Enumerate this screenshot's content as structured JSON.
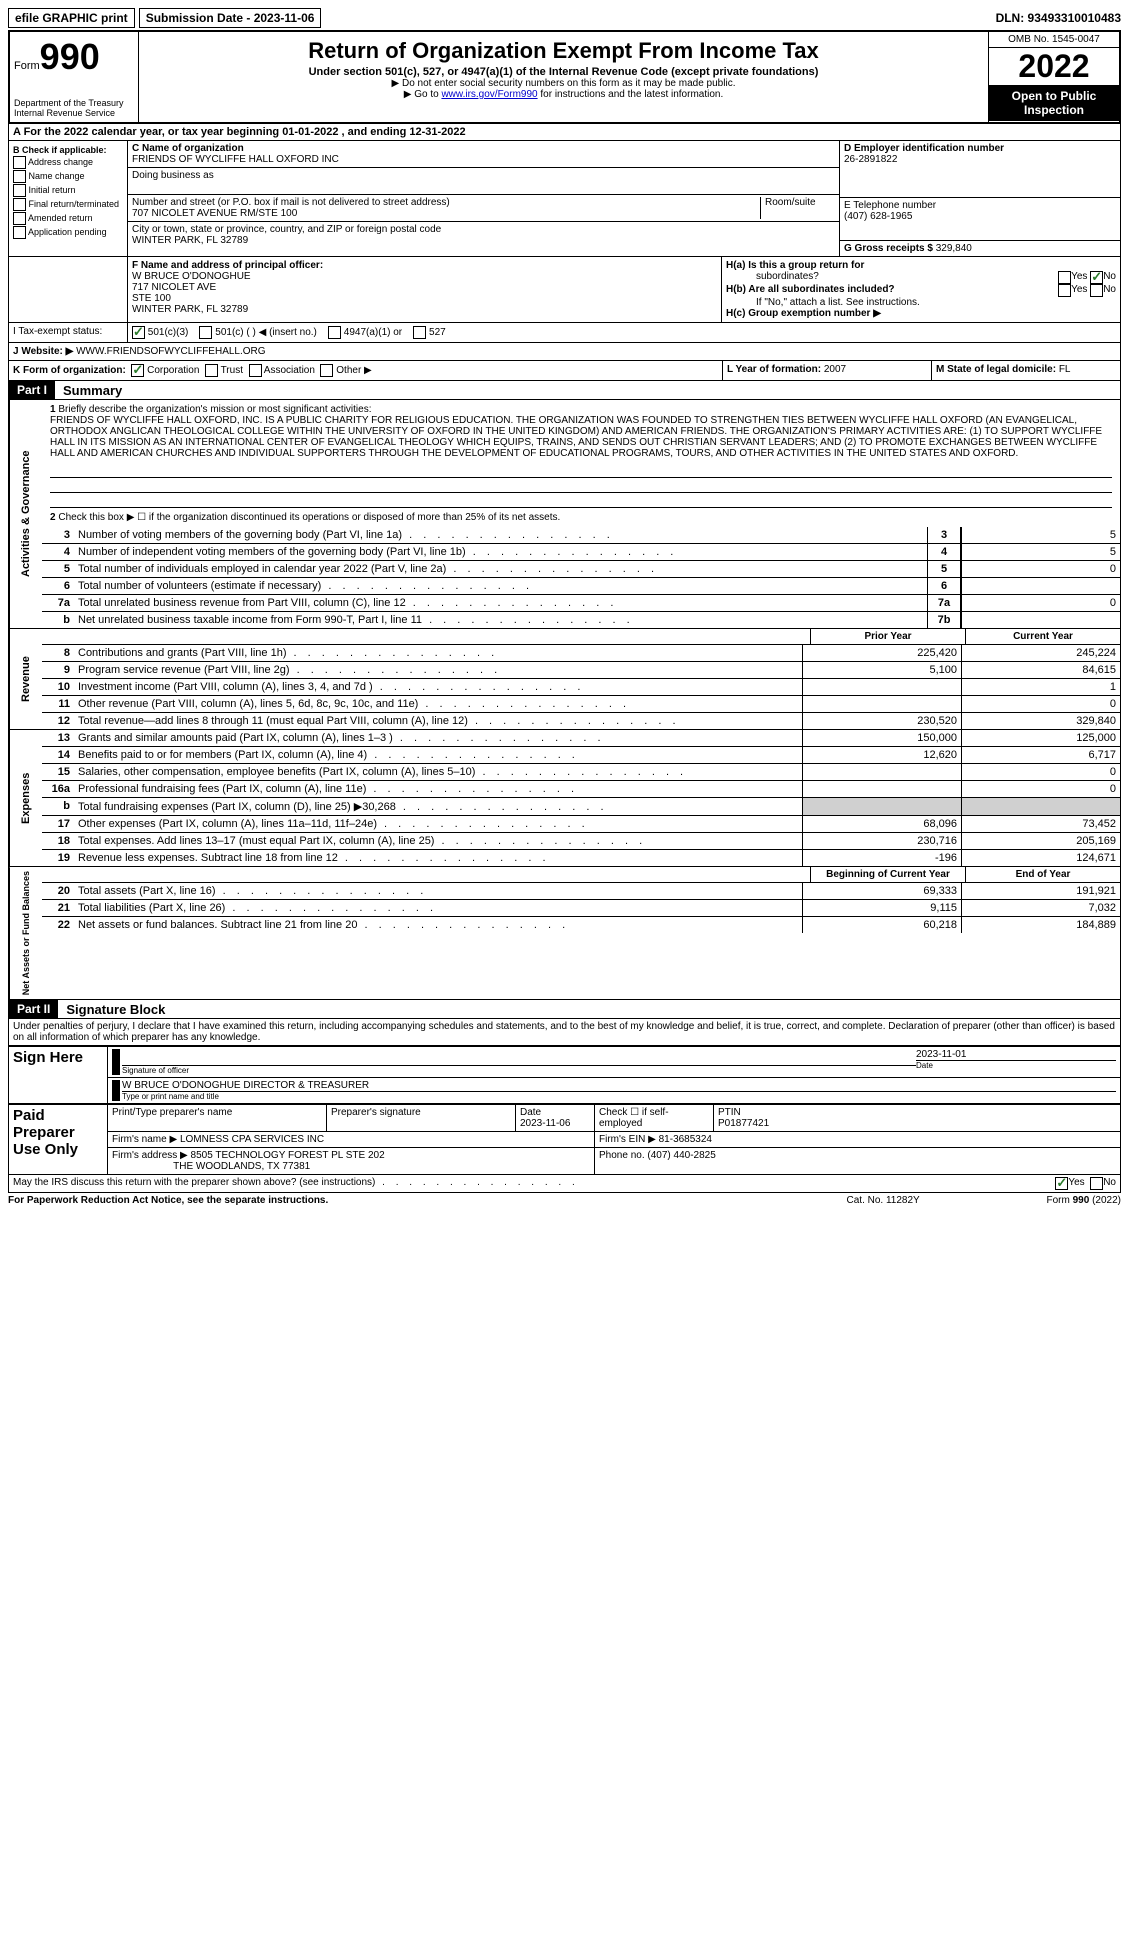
{
  "topbar": {
    "efile": "efile GRAPHIC print",
    "submission": "Submission Date - 2023-11-06",
    "dln": "DLN: 93493310010483"
  },
  "header": {
    "form_label": "Form",
    "form_number": "990",
    "dept": "Department of the Treasury",
    "irs": "Internal Revenue Service",
    "title": "Return of Organization Exempt From Income Tax",
    "sub": "Under section 501(c), 527, or 4947(a)(1) of the Internal Revenue Code (except private foundations)",
    "note1": "▶ Do not enter social security numbers on this form as it may be made public.",
    "note2_pre": "▶ Go to ",
    "note2_link": "www.irs.gov/Form990",
    "note2_post": " for instructions and the latest information.",
    "omb": "OMB No. 1545-0047",
    "year": "2022",
    "inspection": "Open to Public Inspection"
  },
  "sectionA": "A For the 2022 calendar year, or tax year beginning 01-01-2022    , and ending 12-31-2022",
  "colB": {
    "title": "B Check if applicable:",
    "addr": "Address change",
    "name": "Name change",
    "initial": "Initial return",
    "final": "Final return/terminated",
    "amended": "Amended return",
    "app": "Application pending"
  },
  "colC": {
    "name_label": "C Name of organization",
    "name": "FRIENDS OF WYCLIFFE HALL OXFORD INC",
    "dba_label": "Doing business as",
    "street_label": "Number and street (or P.O. box if mail is not delivered to street address)",
    "street": "707 NICOLET AVENUE RM/STE 100",
    "room_label": "Room/suite",
    "city_label": "City or town, state or province, country, and ZIP or foreign postal code",
    "city": "WINTER PARK, FL  32789"
  },
  "colD": {
    "ein_label": "D Employer identification number",
    "ein": "26-2891822",
    "phone_label": "E Telephone number",
    "phone": "(407) 628-1965",
    "receipts_label": "G Gross receipts $",
    "receipts": "329,840"
  },
  "rowF": {
    "label": "F Name and address of principal officer:",
    "name": "W BRUCE O'DONOGHUE",
    "addr1": "717 NICOLET AVE",
    "addr2": "STE 100",
    "addr3": "WINTER PARK, FL  32789"
  },
  "rowH": {
    "ha": "H(a) Is this a group return for",
    "sub": "subordinates?",
    "hb": "H(b) Are all subordinates included?",
    "note": "If \"No,\" attach a list. See instructions.",
    "hc": "H(c) Group exemption number ▶",
    "yes": "Yes",
    "no": "No"
  },
  "rowI": {
    "label": "I    Tax-exempt status:",
    "c3": "501(c)(3)",
    "c": "501(c) (  ) ◀ (insert no.)",
    "a1": "4947(a)(1) or",
    "s527": "527"
  },
  "rowJ": {
    "label": "J   Website: ▶",
    "val": "WWW.FRIENDSOFWYCLIFFEHALL.ORG"
  },
  "rowK": {
    "label": "K Form of organization:",
    "corp": "Corporation",
    "trust": "Trust",
    "assoc": "Association",
    "other": "Other ▶",
    "l_label": "L Year of formation:",
    "l_val": "2007",
    "m_label": "M State of legal domicile:",
    "m_val": "FL"
  },
  "part1": {
    "header": "Part I",
    "title": "Summary",
    "side1": "Activities & Governance",
    "side2": "Revenue",
    "side3": "Expenses",
    "side4": "Net Assets or Fund Balances",
    "q1_label": "1",
    "q1": "Briefly describe the organization's mission or most significant activities:",
    "mission": "FRIENDS OF WYCLIFFE HALL OXFORD, INC. IS A PUBLIC CHARITY FOR RELIGIOUS EDUCATION. THE ORGANIZATION WAS FOUNDED TO STRENGTHEN TIES BETWEEN WYCLIFFE HALL OXFORD (AN EVANGELICAL, ORTHODOX ANGLICAN THEOLOGICAL COLLEGE WITHIN THE UNIVERSITY OF OXFORD IN THE UNITED KINGDOM) AND AMERICAN FRIENDS. THE ORGANIZATION'S PRIMARY ACTIVITIES ARE: (1) TO SUPPORT WYCLIFFE HALL IN ITS MISSION AS AN INTERNATIONAL CENTER OF EVANGELICAL THEOLOGY WHICH EQUIPS, TRAINS, AND SENDS OUT CHRISTIAN SERVANT LEADERS; AND (2) TO PROMOTE EXCHANGES BETWEEN WYCLIFFE HALL AND AMERICAN CHURCHES AND INDIVIDUAL SUPPORTERS THROUGH THE DEVELOPMENT OF EDUCATIONAL PROGRAMS, TOURS, AND OTHER ACTIVITIES IN THE UNITED STATES AND OXFORD.",
    "q2": "Check this box ▶ ☐ if the organization discontinued its operations or disposed of more than 25% of its net assets.",
    "rows_gov": [
      {
        "n": "3",
        "d": "Number of voting members of the governing body (Part VI, line 1a)",
        "b": "3",
        "v": "5"
      },
      {
        "n": "4",
        "d": "Number of independent voting members of the governing body (Part VI, line 1b)",
        "b": "4",
        "v": "5"
      },
      {
        "n": "5",
        "d": "Total number of individuals employed in calendar year 2022 (Part V, line 2a)",
        "b": "5",
        "v": "0"
      },
      {
        "n": "6",
        "d": "Total number of volunteers (estimate if necessary)",
        "b": "6",
        "v": ""
      },
      {
        "n": "7a",
        "d": "Total unrelated business revenue from Part VIII, column (C), line 12",
        "b": "7a",
        "v": "0"
      },
      {
        "n": "b",
        "d": "Net unrelated business taxable income from Form 990-T, Part I, line 11",
        "b": "7b",
        "v": ""
      }
    ],
    "col_prior": "Prior Year",
    "col_current": "Current Year",
    "rows_rev": [
      {
        "n": "8",
        "d": "Contributions and grants (Part VIII, line 1h)",
        "p": "225,420",
        "c": "245,224"
      },
      {
        "n": "9",
        "d": "Program service revenue (Part VIII, line 2g)",
        "p": "5,100",
        "c": "84,615"
      },
      {
        "n": "10",
        "d": "Investment income (Part VIII, column (A), lines 3, 4, and 7d )",
        "p": "",
        "c": "1"
      },
      {
        "n": "11",
        "d": "Other revenue (Part VIII, column (A), lines 5, 6d, 8c, 9c, 10c, and 11e)",
        "p": "",
        "c": "0"
      },
      {
        "n": "12",
        "d": "Total revenue—add lines 8 through 11 (must equal Part VIII, column (A), line 12)",
        "p": "230,520",
        "c": "329,840"
      }
    ],
    "rows_exp": [
      {
        "n": "13",
        "d": "Grants and similar amounts paid (Part IX, column (A), lines 1–3 )",
        "p": "150,000",
        "c": "125,000"
      },
      {
        "n": "14",
        "d": "Benefits paid to or for members (Part IX, column (A), line 4)",
        "p": "12,620",
        "c": "6,717"
      },
      {
        "n": "15",
        "d": "Salaries, other compensation, employee benefits (Part IX, column (A), lines 5–10)",
        "p": "",
        "c": "0"
      },
      {
        "n": "16a",
        "d": "Professional fundraising fees (Part IX, column (A), line 11e)",
        "p": "",
        "c": "0"
      },
      {
        "n": "b",
        "d": "Total fundraising expenses (Part IX, column (D), line 25) ▶30,268",
        "p": "grey",
        "c": "grey"
      },
      {
        "n": "17",
        "d": "Other expenses (Part IX, column (A), lines 11a–11d, 11f–24e)",
        "p": "68,096",
        "c": "73,452"
      },
      {
        "n": "18",
        "d": "Total expenses. Add lines 13–17 (must equal Part IX, column (A), line 25)",
        "p": "230,716",
        "c": "205,169"
      },
      {
        "n": "19",
        "d": "Revenue less expenses. Subtract line 18 from line 12",
        "p": "-196",
        "c": "124,671"
      }
    ],
    "col_begin": "Beginning of Current Year",
    "col_end": "End of Year",
    "rows_net": [
      {
        "n": "20",
        "d": "Total assets (Part X, line 16)",
        "p": "69,333",
        "c": "191,921"
      },
      {
        "n": "21",
        "d": "Total liabilities (Part X, line 26)",
        "p": "9,115",
        "c": "7,032"
      },
      {
        "n": "22",
        "d": "Net assets or fund balances. Subtract line 21 from line 20",
        "p": "60,218",
        "c": "184,889"
      }
    ]
  },
  "part2": {
    "header": "Part II",
    "title": "Signature Block",
    "perjury": "Under penalties of perjury, I declare that I have examined this return, including accompanying schedules and statements, and to the best of my knowledge and belief, it is true, correct, and complete. Declaration of preparer (other than officer) is based on all information of which preparer has any knowledge.",
    "sign_here": "Sign Here",
    "sig_officer": "Signature of officer",
    "date_label": "Date",
    "date": "2023-11-01",
    "officer": "W BRUCE O'DONOGHUE  DIRECTOR & TREASURER",
    "type_label": "Type or print name and title",
    "paid": "Paid Preparer Use Only",
    "print_label": "Print/Type preparer's name",
    "prep_sig": "Preparer's signature",
    "prep_date_label": "Date",
    "prep_date": "2023-11-06",
    "check_self": "Check ☐ if self-employed",
    "ptin_label": "PTIN",
    "ptin": "P01877421",
    "firm_name_label": "Firm's name    ▶",
    "firm_name": "LOMNESS CPA SERVICES INC",
    "firm_ein_label": "Firm's EIN ▶",
    "firm_ein": "81-3685324",
    "firm_addr_label": "Firm's address ▶",
    "firm_addr1": "8505 TECHNOLOGY FOREST PL STE 202",
    "firm_addr2": "THE WOODLANDS, TX  77381",
    "firm_phone_label": "Phone no.",
    "firm_phone": "(407) 440-2825",
    "discuss": "May the IRS discuss this return with the preparer shown above? (see instructions)",
    "yes": "Yes",
    "no": "No"
  },
  "footer": {
    "pra": "For Paperwork Reduction Act Notice, see the separate instructions.",
    "cat": "Cat. No. 11282Y",
    "form": "Form 990 (2022)"
  }
}
